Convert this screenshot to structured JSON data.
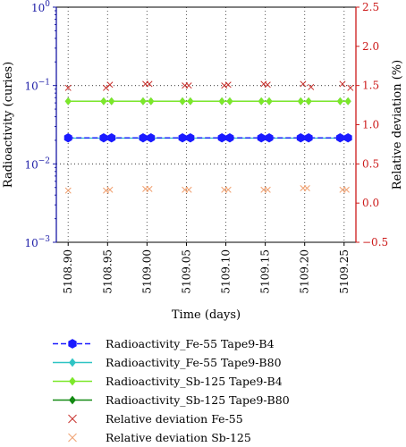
{
  "chart_data": {
    "type": "line",
    "title": "",
    "xlabel": "Time (days)",
    "ylabel_left": "Radioactivity (curies)",
    "ylabel_right": "Relative deviation (%)",
    "x_ticks": [
      "5108.90",
      "5108.95",
      "5109.00",
      "5109.05",
      "5109.10",
      "5109.15",
      "5109.20",
      "5109.25"
    ],
    "xlim": [
      5108.885,
      5109.265
    ],
    "ylim_left": [
      0.001,
      1
    ],
    "y_scale_left": "log",
    "y_ticks_left": [
      {
        "value": 1,
        "base": "10",
        "exp": "0"
      },
      {
        "value": 0.1,
        "base": "10",
        "exp": "−1"
      },
      {
        "value": 0.01,
        "base": "10",
        "exp": "−2"
      },
      {
        "value": 0.001,
        "base": "10",
        "exp": "−3"
      }
    ],
    "ylim_right": [
      -0.5,
      2.5
    ],
    "y_ticks_right": [
      "−0.5",
      "0.0",
      "0.5",
      "1.0",
      "1.5",
      "2.0",
      "2.5"
    ],
    "grid": "dotted",
    "legend_position": "below",
    "series": [
      {
        "name": "Radioactivity_Fe-55 Tape9-B4",
        "axis": "left",
        "marker": "hexagon",
        "line": "dashed",
        "color": "#1a1aff",
        "x": [
          5108.9,
          5108.945,
          5108.955,
          5108.995,
          5109.005,
          5109.045,
          5109.055,
          5109.095,
          5109.105,
          5109.145,
          5109.155,
          5109.195,
          5109.205,
          5109.245,
          5109.255
        ],
        "values": [
          0.0215,
          0.0215,
          0.0215,
          0.0215,
          0.0215,
          0.0215,
          0.0215,
          0.0215,
          0.0215,
          0.0215,
          0.0215,
          0.0215,
          0.0215,
          0.0215,
          0.0215
        ]
      },
      {
        "name": "Radioactivity_Fe-55 Tape9-B80",
        "axis": "left",
        "marker": "diamond",
        "line": "solid",
        "color": "#2ec4c4",
        "x": [
          5108.9,
          5108.945,
          5108.955,
          5108.995,
          5109.005,
          5109.045,
          5109.055,
          5109.095,
          5109.105,
          5109.145,
          5109.155,
          5109.195,
          5109.205,
          5109.245,
          5109.255
        ],
        "values": [
          0.0213,
          0.0213,
          0.0213,
          0.0213,
          0.0213,
          0.0213,
          0.0213,
          0.0213,
          0.0213,
          0.0213,
          0.0213,
          0.0213,
          0.0213,
          0.0213,
          0.0213
        ]
      },
      {
        "name": "Radioactivity_Sb-125 Tape9-B4",
        "axis": "left",
        "marker": "diamond",
        "line": "solid",
        "color": "#7ce82a",
        "x": [
          5108.9,
          5108.945,
          5108.955,
          5108.995,
          5109.005,
          5109.045,
          5109.055,
          5109.095,
          5109.105,
          5109.145,
          5109.155,
          5109.195,
          5109.205,
          5109.245,
          5109.255
        ],
        "values": [
          0.063,
          0.063,
          0.063,
          0.063,
          0.063,
          0.063,
          0.063,
          0.063,
          0.063,
          0.063,
          0.063,
          0.063,
          0.063,
          0.063,
          0.063
        ]
      },
      {
        "name": "Radioactivity_Sb-125 Tape9-B80",
        "axis": "left",
        "marker": "diamond",
        "line": "solid",
        "color": "#138a13",
        "x": [
          5108.9,
          5108.945,
          5108.955,
          5108.995,
          5109.005,
          5109.045,
          5109.055,
          5109.095,
          5109.105,
          5109.145,
          5109.155,
          5109.195,
          5109.205,
          5109.245,
          5109.255
        ],
        "values": [
          0.063,
          0.063,
          0.063,
          0.063,
          0.063,
          0.063,
          0.063,
          0.063,
          0.063,
          0.063,
          0.063,
          0.063,
          0.063,
          0.063,
          0.063
        ]
      },
      {
        "name": "Relative deviation Fe-55",
        "axis": "right",
        "marker": "x",
        "line": "none",
        "color": "#c8302c",
        "x": [
          5108.9,
          5108.948,
          5108.953,
          5108.998,
          5109.003,
          5109.048,
          5109.053,
          5109.098,
          5109.103,
          5109.148,
          5109.153,
          5109.198,
          5109.208,
          5109.248,
          5109.258
        ],
        "values": [
          1.47,
          1.47,
          1.51,
          1.52,
          1.52,
          1.5,
          1.5,
          1.5,
          1.51,
          1.52,
          1.51,
          1.52,
          1.48,
          1.52,
          1.47
        ]
      },
      {
        "name": "Relative deviation Sb-125",
        "axis": "right",
        "marker": "x",
        "line": "none",
        "color": "#f0a070",
        "x": [
          5108.9,
          5108.948,
          5108.953,
          5108.998,
          5109.003,
          5109.048,
          5109.053,
          5109.098,
          5109.103,
          5109.148,
          5109.153,
          5109.198,
          5109.203,
          5109.248,
          5109.253
        ],
        "values": [
          0.16,
          0.16,
          0.17,
          0.18,
          0.18,
          0.17,
          0.17,
          0.17,
          0.17,
          0.17,
          0.17,
          0.19,
          0.19,
          0.17,
          0.17
        ]
      }
    ],
    "colors": {
      "left_axis": "#1a1aa6",
      "right_axis": "#cc1a1a"
    }
  }
}
